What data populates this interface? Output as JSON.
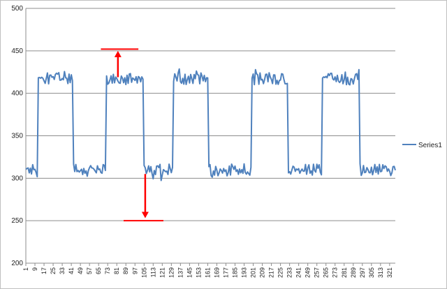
{
  "chart_data": {
    "type": "line",
    "title": "",
    "xlabel": "",
    "ylabel": "",
    "ylim": [
      200,
      500
    ],
    "xlim": [
      1,
      326
    ],
    "y_ticks": [
      200,
      250,
      300,
      350,
      400,
      450,
      500
    ],
    "x_tick_labels": [
      "1",
      "9",
      "17",
      "25",
      "33",
      "41",
      "49",
      "57",
      "65",
      "73",
      "81",
      "89",
      "97",
      "105",
      "113",
      "121",
      "129",
      "137",
      "145",
      "153",
      "161",
      "169",
      "177",
      "185",
      "193",
      "201",
      "209",
      "217",
      "225",
      "233",
      "241",
      "249",
      "257",
      "265",
      "273",
      "281",
      "289",
      "297",
      "305",
      "313",
      "321"
    ],
    "grid": "horizontal",
    "legend": "right",
    "series": [
      {
        "name": "Series1",
        "color": "#4f81bd",
        "waveform": {
          "x_start": 1,
          "x_end": 326,
          "low_level": 310,
          "high_level": 417,
          "noise": 7,
          "high_segments": [
            [
              12,
              42
            ],
            [
              72,
              104
            ],
            [
              131,
              161
            ],
            [
              200,
              231
            ],
            [
              262,
              294
            ]
          ]
        }
      }
    ],
    "annotations": [
      {
        "type": "line",
        "color": "#ff0000",
        "x_range": [
          67,
          100
        ],
        "y": 452
      },
      {
        "type": "arrow",
        "color": "#ff0000",
        "x": 82,
        "y_from": 419,
        "y_to": 450
      },
      {
        "type": "line",
        "color": "#ff0000",
        "x_range": [
          87,
          122
        ],
        "y": 250
      },
      {
        "type": "arrow",
        "color": "#ff0000",
        "x": 106,
        "y_from": 305,
        "y_to": 253
      }
    ]
  }
}
